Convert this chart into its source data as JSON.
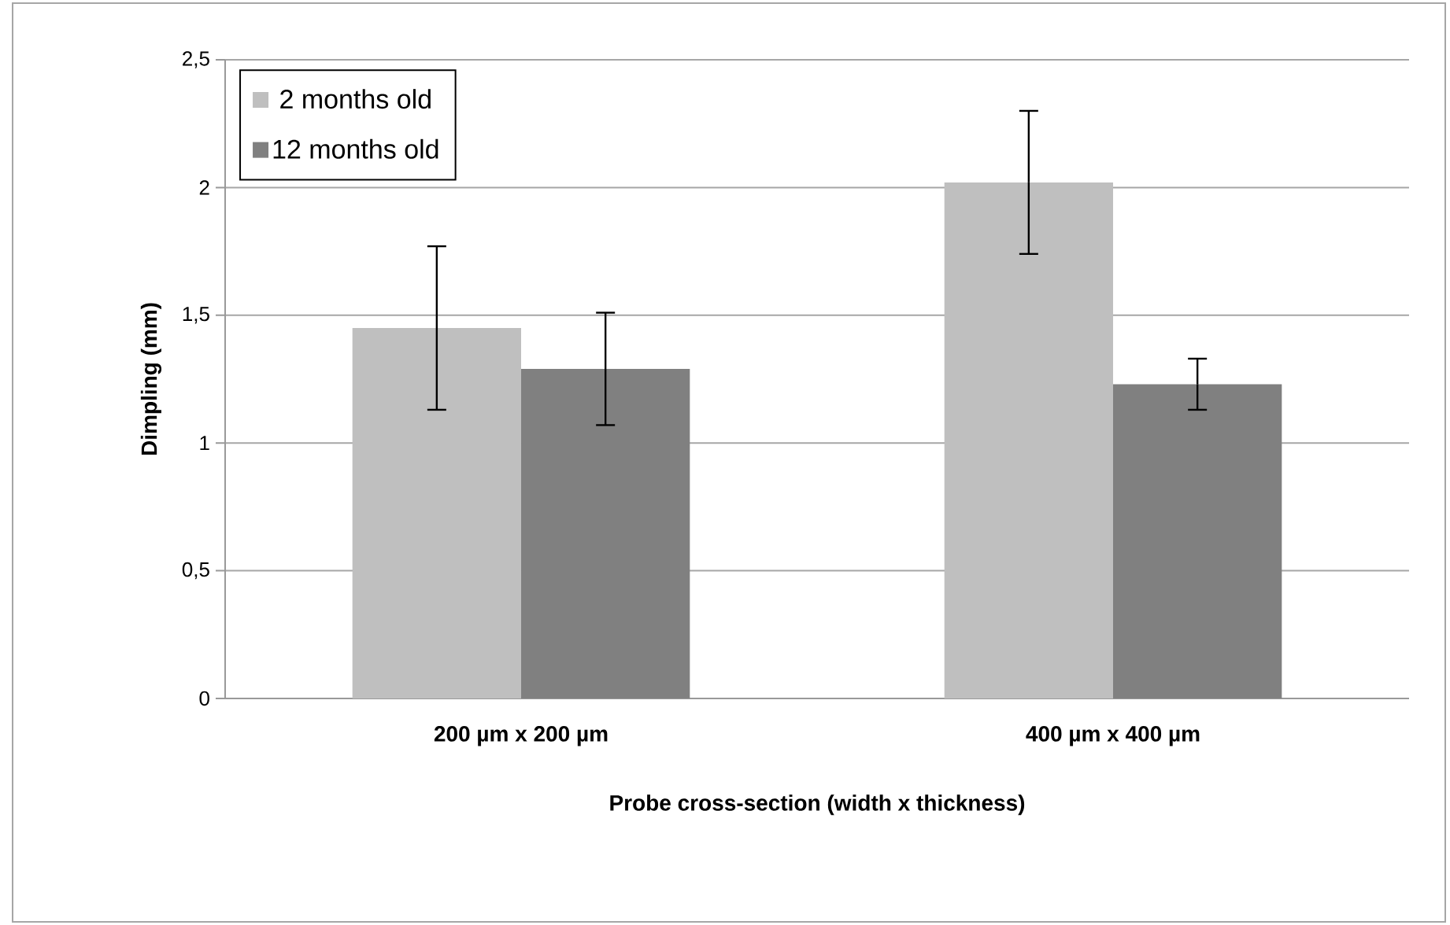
{
  "chart_data": {
    "type": "bar",
    "xlabel": "Probe cross-section  (width x thickness)",
    "ylabel": "Dimpling (mm)",
    "categories": [
      "200 µm  x 200 µm",
      "400 µm  x 400 µm"
    ],
    "series": [
      {
        "name": "2 months old",
        "color": "#bfbfbf",
        "values": [
          1.45,
          2.02
        ],
        "errors": [
          0.32,
          0.28
        ]
      },
      {
        "name": "12 months old",
        "color": "#808080",
        "values": [
          1.29,
          1.23
        ],
        "errors": [
          0.22,
          0.1
        ]
      }
    ],
    "ylim": [
      0,
      2.5
    ],
    "yticks": [
      {
        "value": 0,
        "label": "0"
      },
      {
        "value": 0.5,
        "label": "0,5"
      },
      {
        "value": 1,
        "label": "1"
      },
      {
        "value": 1.5,
        "label": "1,5"
      },
      {
        "value": 2,
        "label": "2"
      },
      {
        "value": 2.5,
        "label": "2,5"
      }
    ],
    "grid": "y",
    "legend": "top left"
  }
}
